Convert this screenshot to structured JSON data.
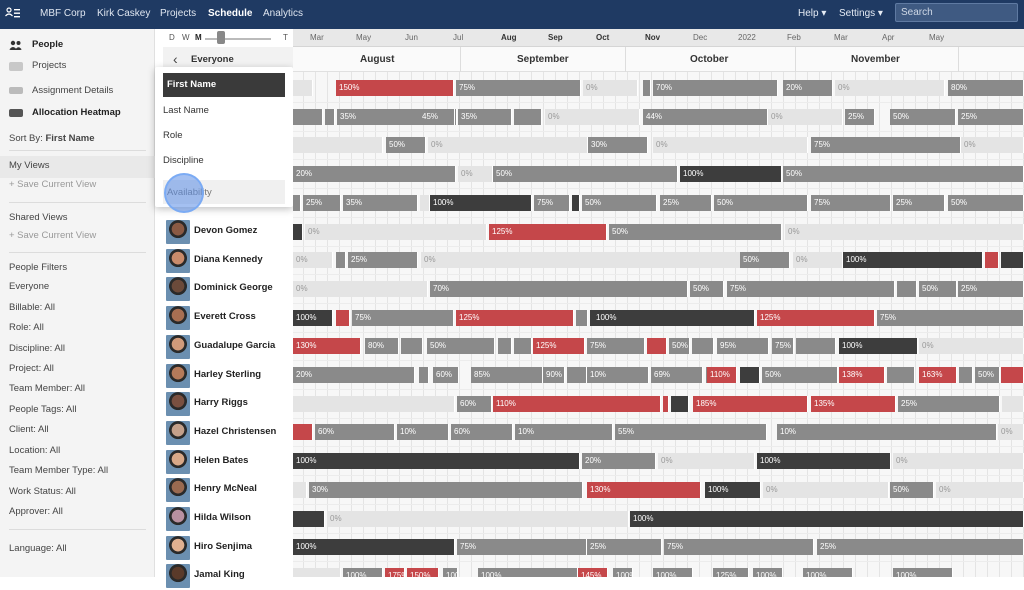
{
  "topbar": {
    "nav": [
      "MBF Corp",
      "Kirk Caskey",
      "Projects",
      "Schedule",
      "Analytics"
    ],
    "active": "Schedule",
    "help": "Help ▾",
    "settings": "Settings ▾",
    "search_placeholder": "Search"
  },
  "sidebar": {
    "people": "People",
    "projects": "Projects",
    "assignment_details": "Assignment Details",
    "allocation_heatmap": "Allocation Heatmap",
    "sort_by_label": "Sort By:",
    "sort_by_value": "First Name",
    "my_views": "My Views",
    "save_current_view": "+ Save Current View",
    "shared_views": "Shared Views",
    "shared_save_current_view": "+ Save Current View",
    "people_filters": "People Filters",
    "filters": [
      "Everyone",
      "Billable: All",
      "Role: All",
      "Discipline: All",
      "Project: All",
      "Team Member: All",
      "People Tags: All",
      "Client: All",
      "Location: All",
      "Team Member Type: All",
      "Work Status: All",
      "Approver: All"
    ],
    "language": "Language: All"
  },
  "zoom": {
    "d": "D",
    "w": "W",
    "m": "M",
    "t": "T"
  },
  "people_header": {
    "back": "‹",
    "title": "Everyone"
  },
  "dropdown": {
    "options": [
      "First Name",
      "Last Name",
      "Role",
      "Discipline",
      "Availability"
    ],
    "selected": "First Name"
  },
  "people": [
    "Devon Gomez",
    "Diana Kennedy",
    "Dominick George",
    "Everett Cross",
    "Guadalupe Garcia",
    "Harley Sterling",
    "Harry Riggs",
    "Hazel Christensen",
    "Helen Bates",
    "Henry McNeal",
    "Hilda Wilson",
    "Hiro Senjima",
    "Jamal King"
  ],
  "timeline": {
    "small_months": [
      "Mar",
      "May",
      "Jun",
      "Jul",
      "Aug",
      "Sep",
      "Oct",
      "Nov",
      "Dec",
      "2022",
      "Feb",
      "Mar",
      "Apr",
      "May"
    ],
    "bold_small": [
      "Aug",
      "Sep",
      "Oct",
      "Nov"
    ],
    "big_months": [
      "August",
      "September",
      "October",
      "November"
    ]
  },
  "colors": {
    "red": "#c5474a",
    "gray": "#8a8a8a",
    "dark": "#3d3d3d",
    "light": "#e4e4e4",
    "nav": "#1f3a63"
  },
  "rows": [
    [
      [
        "l",
        0,
        20,
        ""
      ],
      [
        "r",
        43,
        118,
        "150%"
      ],
      [
        "g",
        163,
        125,
        "75%"
      ],
      [
        "l",
        290,
        55,
        "0%"
      ],
      [
        "g",
        350,
        8,
        ""
      ],
      [
        "g",
        360,
        125,
        "70%"
      ],
      [
        "g",
        490,
        50,
        "20%"
      ],
      [
        "l",
        542,
        110,
        "0%"
      ],
      [
        "g",
        655,
        76,
        "80%"
      ]
    ],
    [
      [
        "g",
        0,
        30,
        ""
      ],
      [
        "g",
        32,
        10,
        ""
      ],
      [
        "g",
        44,
        120,
        "35%"
      ],
      [
        "g",
        126,
        36,
        "45%"
      ],
      [
        "g",
        165,
        54,
        "35%"
      ],
      [
        "g",
        221,
        28,
        ""
      ],
      [
        "l",
        252,
        95,
        "0%"
      ],
      [
        "g",
        350,
        125,
        "44%"
      ],
      [
        "l",
        475,
        75,
        "0%"
      ],
      [
        "g",
        552,
        30,
        "25%"
      ],
      [
        "g",
        597,
        66,
        "50%"
      ],
      [
        "g",
        665,
        66,
        "25%"
      ]
    ],
    [
      [
        "l",
        0,
        90,
        ""
      ],
      [
        "g",
        93,
        40,
        "50%"
      ],
      [
        "l",
        135,
        160,
        "0%"
      ],
      [
        "g",
        295,
        60,
        "30%"
      ],
      [
        "l",
        360,
        155,
        "0%"
      ],
      [
        "g",
        518,
        150,
        "75%"
      ],
      [
        "l",
        668,
        63,
        "0%"
      ]
    ],
    [
      [
        "g",
        0,
        163,
        "20%"
      ],
      [
        "l",
        165,
        35,
        "0%"
      ],
      [
        "g",
        200,
        185,
        "50%"
      ],
      [
        "d",
        387,
        102,
        "100%"
      ],
      [
        "g",
        490,
        241,
        "50%"
      ]
    ],
    [
      [
        "g",
        0,
        8,
        ""
      ],
      [
        "g",
        10,
        38,
        "25%"
      ],
      [
        "g",
        50,
        75,
        "35%"
      ],
      [
        "l",
        127,
        10,
        ""
      ],
      [
        "d",
        137,
        102,
        "100%"
      ],
      [
        "g",
        241,
        36,
        "75%"
      ],
      [
        "d",
        279,
        8,
        ""
      ],
      [
        "g",
        289,
        75,
        "50%"
      ],
      [
        "g",
        367,
        52,
        "25%"
      ],
      [
        "g",
        421,
        94,
        "50%"
      ],
      [
        "g",
        518,
        80,
        "75%"
      ],
      [
        "g",
        600,
        52,
        "25%"
      ],
      [
        "g",
        655,
        76,
        "50%"
      ]
    ],
    [
      [
        "d",
        0,
        10,
        ""
      ],
      [
        "l",
        12,
        182,
        "0%"
      ],
      [
        "r",
        196,
        118,
        "125%"
      ],
      [
        "g",
        316,
        173,
        "50%"
      ],
      [
        "l",
        492,
        239,
        "0%"
      ]
    ],
    [
      [
        "l",
        0,
        40,
        "0%"
      ],
      [
        "g",
        43,
        10,
        ""
      ],
      [
        "g",
        55,
        70,
        "25%"
      ],
      [
        "l",
        128,
        320,
        "0%"
      ],
      [
        "g",
        447,
        50,
        "50%"
      ],
      [
        "l",
        500,
        50,
        "0%"
      ],
      [
        "d",
        550,
        140,
        "100%"
      ],
      [
        "r",
        692,
        14,
        ""
      ],
      [
        "d",
        708,
        23,
        ""
      ]
    ],
    [
      [
        "l",
        0,
        135,
        "0%"
      ],
      [
        "g",
        137,
        258,
        "70%"
      ],
      [
        "g",
        397,
        34,
        "50%"
      ],
      [
        "g",
        434,
        168,
        "75%"
      ],
      [
        "g",
        604,
        20,
        ""
      ],
      [
        "g",
        626,
        38,
        "50%"
      ],
      [
        "g",
        665,
        66,
        "25%"
      ]
    ],
    [
      [
        "d",
        0,
        40,
        "100%"
      ],
      [
        "r",
        43,
        14,
        ""
      ],
      [
        "g",
        59,
        102,
        "75%"
      ],
      [
        "r",
        163,
        118,
        "125%"
      ],
      [
        "g",
        283,
        12,
        ""
      ],
      [
        "d",
        297,
        4,
        ""
      ],
      [
        "d",
        300,
        162,
        "100%"
      ],
      [
        "r",
        464,
        118,
        "125%"
      ],
      [
        "g",
        584,
        147,
        "75%"
      ]
    ],
    [
      [
        "r",
        0,
        68,
        "130%"
      ],
      [
        "g",
        72,
        34,
        "80%"
      ],
      [
        "g",
        108,
        22,
        ""
      ],
      [
        "g",
        134,
        68,
        "50%"
      ],
      [
        "g",
        205,
        14,
        ""
      ],
      [
        "g",
        221,
        18,
        ""
      ],
      [
        "r",
        240,
        52,
        "125%"
      ],
      [
        "g",
        294,
        58,
        "75%"
      ],
      [
        "r",
        354,
        20,
        ""
      ],
      [
        "g",
        376,
        21,
        "50%"
      ],
      [
        "g",
        399,
        22,
        ""
      ],
      [
        "g",
        424,
        52,
        "95%"
      ],
      [
        "g",
        479,
        22,
        "75%"
      ],
      [
        "g",
        503,
        40,
        ""
      ],
      [
        "d",
        546,
        79,
        "100%"
      ],
      [
        "l",
        626,
        105,
        "0%"
      ]
    ],
    [
      [
        "g",
        0,
        122,
        "20%"
      ],
      [
        "g",
        126,
        10,
        ""
      ],
      [
        "g",
        140,
        26,
        "60%"
      ],
      [
        "g",
        178,
        72,
        "85%"
      ],
      [
        "g",
        250,
        22,
        "90%"
      ],
      [
        "g",
        274,
        20,
        ""
      ],
      [
        "g",
        294,
        62,
        "10%"
      ],
      [
        "g",
        358,
        52,
        "69%"
      ],
      [
        "g",
        413,
        24,
        ""
      ],
      [
        "r",
        414,
        30,
        "110%"
      ],
      [
        "d",
        447,
        20,
        ""
      ],
      [
        "g",
        469,
        76,
        "50%"
      ],
      [
        "r",
        546,
        46,
        "138%"
      ],
      [
        "g",
        594,
        28,
        ""
      ],
      [
        "r",
        626,
        38,
        "163%"
      ],
      [
        "g",
        666,
        14,
        ""
      ],
      [
        "g",
        682,
        25,
        "50%"
      ],
      [
        "r",
        708,
        23,
        ""
      ]
    ],
    [
      [
        "l",
        0,
        162,
        ""
      ],
      [
        "g",
        164,
        35,
        "60%"
      ],
      [
        "r",
        200,
        168,
        "110%"
      ],
      [
        "r",
        370,
        6,
        ""
      ],
      [
        "d",
        378,
        18,
        ""
      ],
      [
        "r",
        400,
        115,
        "185%"
      ],
      [
        "r",
        518,
        85,
        "135%"
      ],
      [
        "g",
        605,
        102,
        "25%"
      ],
      [
        "l",
        709,
        22,
        ""
      ]
    ],
    [
      [
        "r",
        0,
        20,
        ""
      ],
      [
        "g",
        22,
        80,
        "60%"
      ],
      [
        "g",
        104,
        52,
        "10%"
      ],
      [
        "g",
        158,
        62,
        "60%"
      ],
      [
        "g",
        222,
        98,
        "10%"
      ],
      [
        "g",
        322,
        152,
        "55%"
      ],
      [
        "g",
        484,
        220,
        "10%"
      ],
      [
        "l",
        705,
        26,
        "0%"
      ]
    ],
    [
      [
        "d",
        0,
        287,
        "100%"
      ],
      [
        "g",
        289,
        74,
        "20%"
      ],
      [
        "l",
        365,
        97,
        "0%"
      ],
      [
        "d",
        464,
        134,
        "100%"
      ],
      [
        "l",
        600,
        131,
        "0%"
      ]
    ],
    [
      [
        "l",
        0,
        14,
        ""
      ],
      [
        "g",
        16,
        274,
        "30%"
      ],
      [
        "r",
        294,
        114,
        "130%"
      ],
      [
        "d",
        412,
        56,
        "100%"
      ],
      [
        "l",
        470,
        126,
        "0%"
      ],
      [
        "g",
        597,
        44,
        "50%"
      ],
      [
        "l",
        643,
        88,
        "0%"
      ]
    ],
    [
      [
        "d",
        0,
        32,
        ""
      ],
      [
        "l",
        34,
        302,
        "0%"
      ],
      [
        "d",
        337,
        394,
        "100%"
      ]
    ],
    [
      [
        "d",
        0,
        162,
        "100%"
      ],
      [
        "g",
        164,
        130,
        "75%"
      ],
      [
        "g",
        294,
        75,
        "25%"
      ],
      [
        "g",
        371,
        150,
        "75%"
      ],
      [
        "g",
        524,
        207,
        "25%"
      ]
    ],
    [
      [
        "l",
        0,
        48,
        ""
      ],
      [
        "g",
        50,
        40,
        "100%"
      ],
      [
        "r",
        92,
        20,
        "175%"
      ],
      [
        "r",
        114,
        32,
        "150%"
      ],
      [
        "g",
        150,
        15,
        "100%"
      ],
      [
        "g",
        185,
        100,
        "100%"
      ],
      [
        "r",
        285,
        30,
        "145%"
      ],
      [
        "g",
        320,
        20,
        "100%"
      ],
      [
        "g",
        360,
        40,
        "100%"
      ],
      [
        "g",
        420,
        36,
        "125%"
      ],
      [
        "g",
        460,
        30,
        "100%"
      ],
      [
        "g",
        510,
        50,
        "100%"
      ],
      [
        "g",
        600,
        60,
        "100%"
      ]
    ]
  ]
}
